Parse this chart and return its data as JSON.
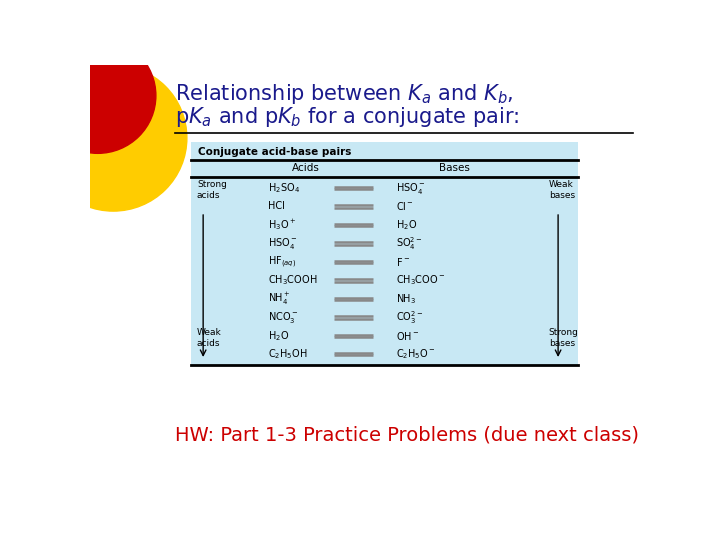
{
  "bg_color": "#ffffff",
  "title_color": "#1a1a8c",
  "hw_text": "HW: Part 1-3 Practice Problems (due next class)",
  "hw_color": "#cc0000",
  "table_bg": "#c8e8f4",
  "table_title": "Conjugate acid-base pairs",
  "acids_header": "Acids",
  "bases_header": "Bases",
  "acids_display": [
    "H$_2$SO$_4$",
    "HCl",
    "H$_3$O$^+$",
    "HSO$_4^-$",
    "HF$_{(aq)}$",
    "CH$_3$COOH",
    "NH$_4^+$",
    "NCO$_3^-$",
    "H$_2$O",
    "C$_2$H$_5$OH"
  ],
  "bases_display": [
    "HSO$_4^-$",
    "Cl$^-$",
    "H$_2$O",
    "SO$_4^{2-}$",
    "F$^-$",
    "CH$_3$COO$^-$",
    "NH$_3$",
    "CO$_3^{2-}$",
    "OH$^-$",
    "C$_2$H$_5$O$^-$"
  ],
  "circle_red": "#cc0000",
  "circle_yellow": "#ffcc00",
  "title1": "Relationship between $K_a$ and $K_b$,",
  "title2": "p$K_a$ and p$K_b$ for a conjugate pair:"
}
